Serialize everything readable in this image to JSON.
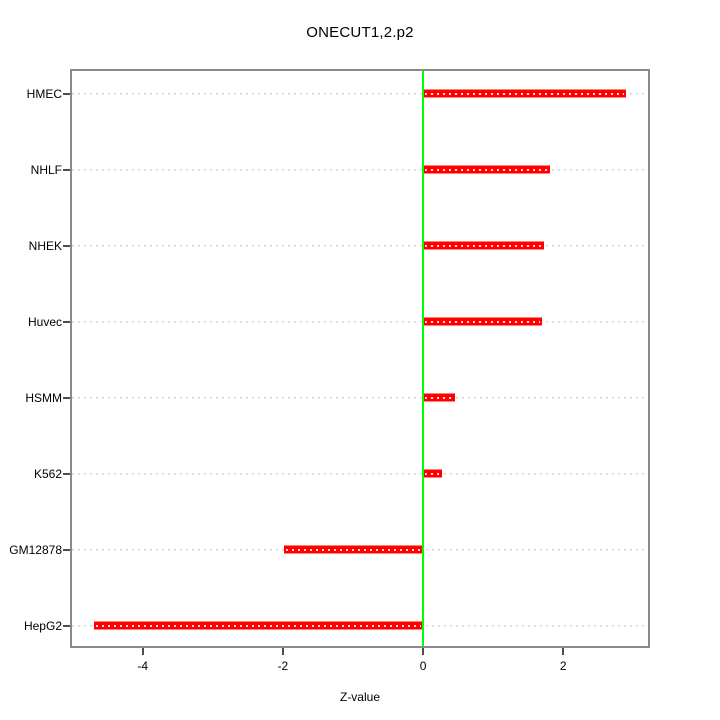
{
  "chart_data": {
    "type": "bar",
    "orientation": "horizontal",
    "title": "ONECUT1,2.p2",
    "xlabel": "Z-value",
    "ylabel": "",
    "categories": [
      "HMEC",
      "NHLF",
      "NHEK",
      "Huvec",
      "HSMM",
      "K562",
      "GM12878",
      "HepG2"
    ],
    "values": [
      2.9,
      1.81,
      1.73,
      1.7,
      0.46,
      0.27,
      -1.98,
      -4.7
    ],
    "xlim": [
      -5.01,
      3.21
    ],
    "xticks": [
      -4,
      -2,
      0,
      2
    ],
    "grid": "horizontal-dotted",
    "reference_line_x": 0,
    "legend": "none",
    "colors": {
      "bar": "#ff0000",
      "bar_edge": "#ff8080",
      "bar_center_dots": "#ffffff",
      "reference_line": "#00ff00",
      "gridline": "#d4d4d4",
      "box_border": "#8a8a8a",
      "tick": "#4d4d4d",
      "text": "#000000",
      "background": "#ffffff"
    }
  }
}
